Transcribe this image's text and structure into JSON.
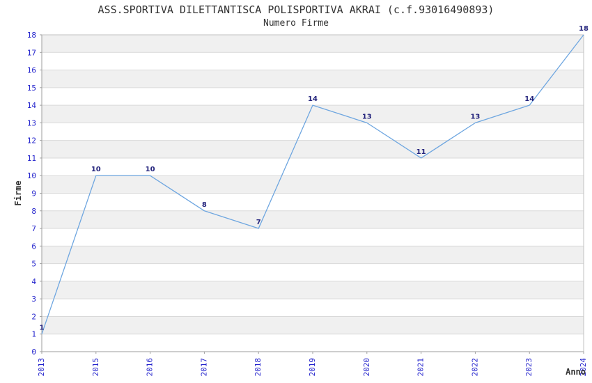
{
  "chart_data": {
    "type": "line",
    "title": "ASS.SPORTIVA DILETTANTISCA POLISPORTIVA AKRAI (c.f.93016490893)",
    "subtitle": "Numero Firme",
    "xlabel": "Anno",
    "ylabel": "Firme",
    "categories": [
      "2013",
      "2015",
      "2016",
      "2017",
      "2018",
      "2019",
      "2020",
      "2021",
      "2022",
      "2023",
      "2024"
    ],
    "values": [
      1,
      10,
      10,
      8,
      7,
      14,
      13,
      11,
      13,
      14,
      18
    ],
    "ylim": [
      0,
      18
    ],
    "ytick_step": 1,
    "grid": true,
    "legend": "none",
    "band_fill": "alternating-horizontal",
    "data_labels_shown": true,
    "colors": {
      "line": "#6ea6e0",
      "tick_label": "#2222cc",
      "data_label": "#23237c",
      "heading": "#333333",
      "band": "#f0f0f0",
      "gridline": "#d9d9d9",
      "border": "#c2c2c2",
      "axis": "#9e9e9e",
      "background": "#ffffff"
    }
  }
}
